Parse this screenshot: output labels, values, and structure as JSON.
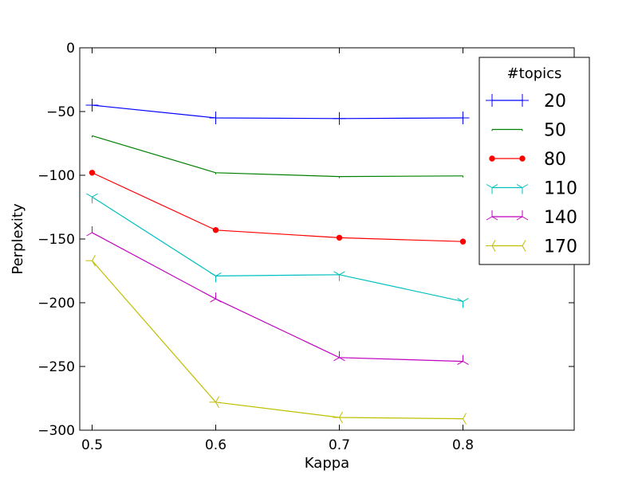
{
  "chart_data": {
    "type": "line",
    "x": [
      0.5,
      0.6,
      0.7,
      0.8
    ],
    "x_tick_labels": [
      "0.5",
      "0.6",
      "0.7",
      "0.8"
    ],
    "y_tick_labels": [
      "0",
      "−50",
      "−100",
      "−150",
      "−200",
      "−250",
      "−300"
    ],
    "y_ticks": [
      0,
      -50,
      -100,
      -150,
      -200,
      -250,
      -300
    ],
    "xlim": [
      0.49,
      0.89
    ],
    "ylim": [
      -300,
      0
    ],
    "xlabel": "Kappa",
    "ylabel": "Perplexity",
    "grid": false,
    "legend": {
      "title": "#topics",
      "placement": "top-right"
    },
    "series": [
      {
        "name": "20",
        "color": "#0000ff",
        "marker": "plus",
        "values": [
          -45,
          -55,
          -55.5,
          -55
        ]
      },
      {
        "name": "50",
        "color": "#008000",
        "marker": "tick-down",
        "values": [
          -69,
          -98,
          -101,
          -100.5
        ]
      },
      {
        "name": "80",
        "color": "#ff0000",
        "marker": "circle",
        "values": [
          -98,
          -143,
          -149,
          -152
        ]
      },
      {
        "name": "110",
        "color": "#00bfbf",
        "marker": "tri-down",
        "values": [
          -117,
          -179,
          -178,
          -199
        ]
      },
      {
        "name": "140",
        "color": "#bf00bf",
        "marker": "tri-up",
        "values": [
          -145,
          -197,
          -243,
          -246
        ]
      },
      {
        "name": "170",
        "color": "#bfbf00",
        "marker": "tri-left",
        "values": [
          -167,
          -278,
          -290,
          -291
        ]
      }
    ]
  }
}
